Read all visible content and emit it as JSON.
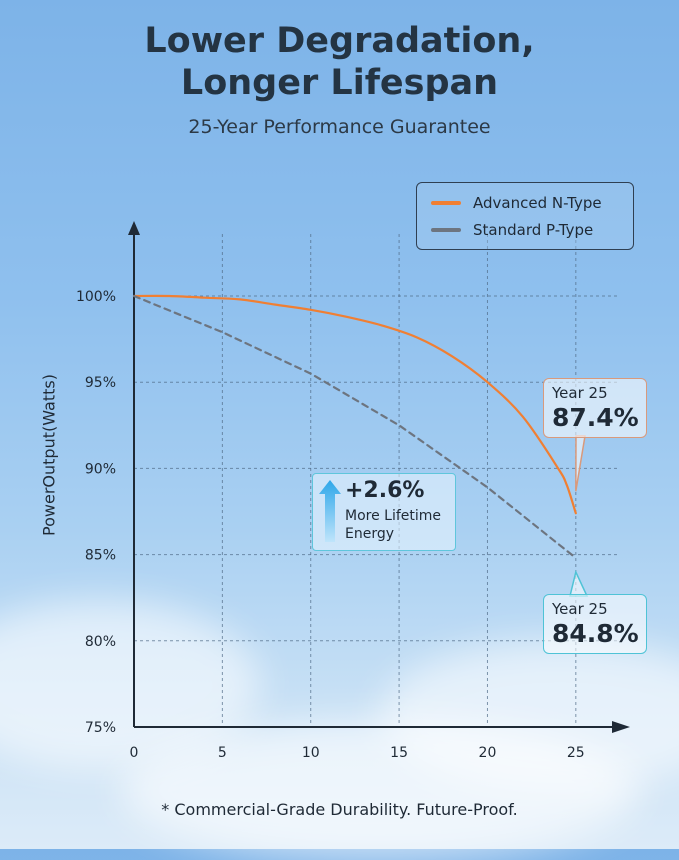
{
  "header": {
    "title_line1": "Lower Degradation,",
    "title_line2": "Longer Lifespan",
    "subtitle": "25-Year Performance Guarantee"
  },
  "footnote": "* Commercial-Grade Durability. Future-Proof.",
  "colors": {
    "n_type": "#f07f33",
    "p_type": "#6d7580",
    "callout_n_border": "#d99a7c",
    "callout_p_border": "#4fc3d6",
    "gain_arrow": "#2ea6e9"
  },
  "chart_data": {
    "type": "line",
    "ylabel": "PowerOutput(Watts)",
    "xlabel": "",
    "xlim": [
      0,
      27.5
    ],
    "ylim": [
      75,
      100
    ],
    "x_ticks": [
      0,
      5,
      10,
      15,
      20,
      25
    ],
    "y_ticks": [
      "100%",
      "95%",
      "90%",
      "85%",
      "80%",
      "75%"
    ],
    "y_tick_values": [
      100,
      95,
      90,
      85,
      80,
      75
    ],
    "grid": true,
    "legend_position": "top-right",
    "series": [
      {
        "name": "Advanced N-Type",
        "style": "solid",
        "x": [
          0,
          2,
          4,
          6,
          8,
          10,
          12,
          14,
          16,
          18,
          20,
          22,
          24,
          24.5,
          25
        ],
        "y": [
          100,
          100,
          99.9,
          99.8,
          99.5,
          99.2,
          98.8,
          98.3,
          97.6,
          96.5,
          95.0,
          93.0,
          90.0,
          89.0,
          87.4
        ]
      },
      {
        "name": "Standard P-Type",
        "style": "dashed",
        "x": [
          0,
          5,
          10,
          15,
          20,
          25
        ],
        "y": [
          100,
          97.9,
          95.5,
          92.5,
          88.9,
          84.8
        ]
      }
    ],
    "annotations": [
      {
        "label": "Year 25",
        "value": "87.4%"
      },
      {
        "label": "Year 25",
        "value": "84.8%"
      },
      {
        "value": "+2.6%",
        "text": "More Lifetime Energy"
      }
    ]
  }
}
